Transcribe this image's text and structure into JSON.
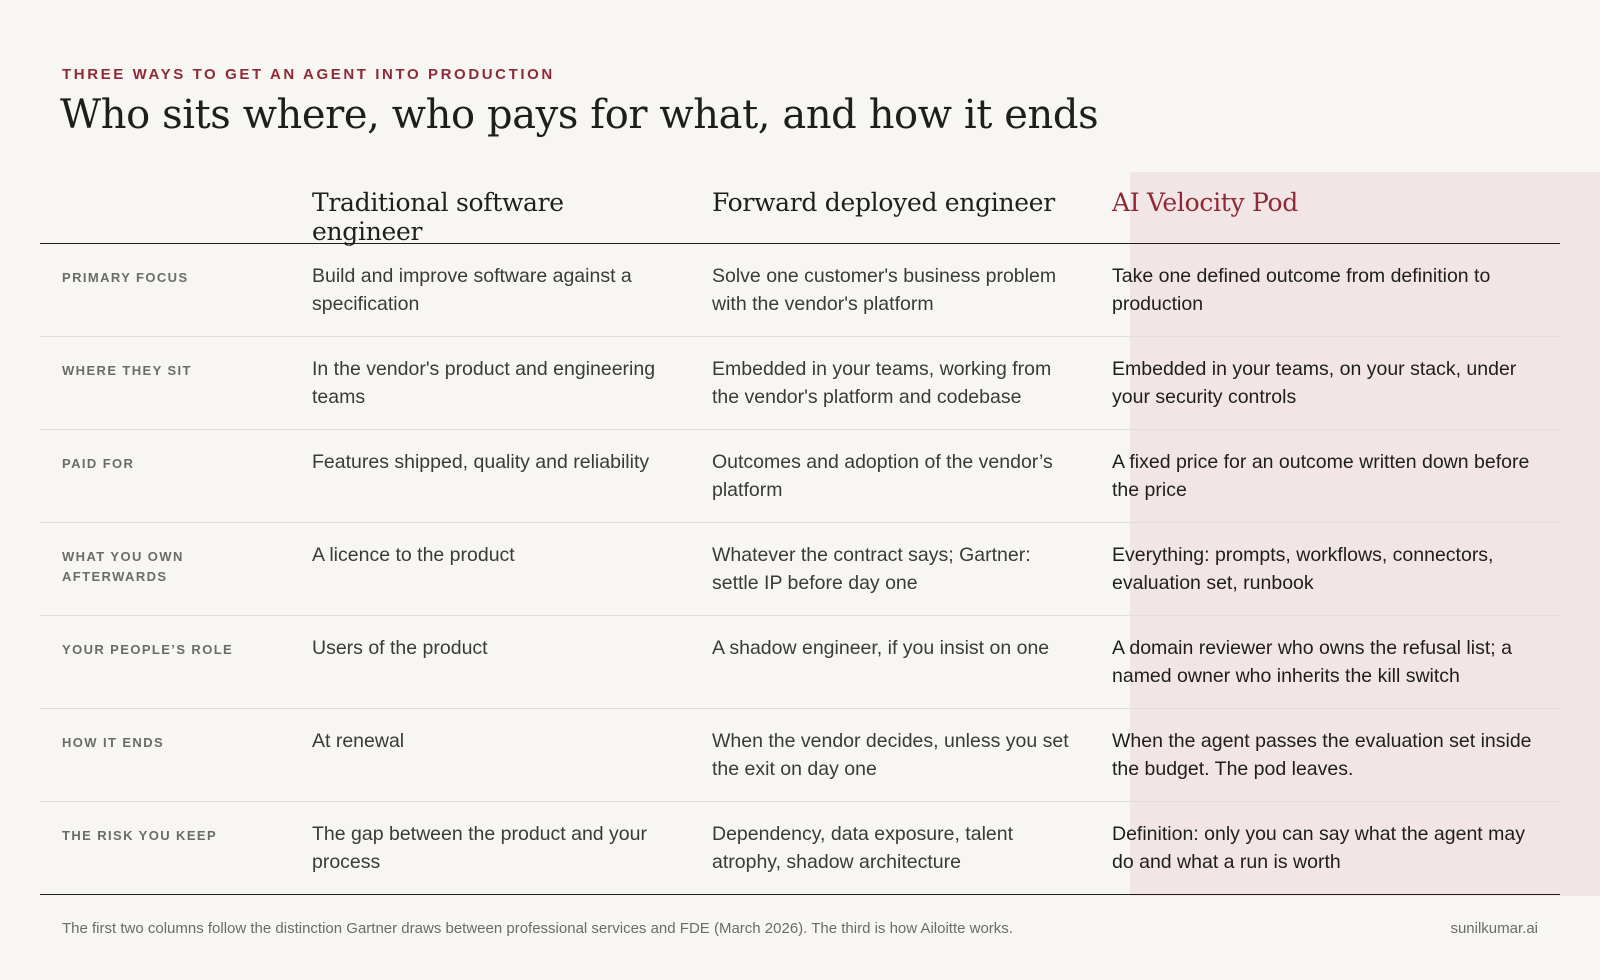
{
  "eyebrow": "THREE WAYS TO GET AN AGENT INTO PRODUCTION",
  "title": "Who sits where, who pays for what, and how it ends",
  "columns": [
    "Traditional software engineer",
    "Forward deployed engineer",
    "AI Velocity Pod"
  ],
  "accent_color": "#8e2a38",
  "highlight_color": "#f1e5e5",
  "rows": [
    {
      "label": "PRIMARY FOCUS",
      "cells": [
        "Build and improve software against a specification",
        "Solve one customer's business problem with the vendor's platform",
        "Take one defined outcome from definition to production"
      ]
    },
    {
      "label": "WHERE THEY SIT",
      "cells": [
        "In the vendor's product and engineering teams",
        "Embedded in your teams, working from the vendor's platform and codebase",
        "Embedded in your teams, on your stack, under your security controls"
      ]
    },
    {
      "label": "PAID FOR",
      "cells": [
        "Features shipped, quality and reliability",
        "Outcomes and adoption of the vendor’s platform",
        "A fixed price for an outcome written down before the price"
      ]
    },
    {
      "label": "WHAT YOU OWN AFTERWARDS",
      "cells": [
        "A licence to the product",
        "Whatever the contract says; Gartner: settle IP before day one",
        "Everything: prompts, workflows, connectors, evaluation set, runbook"
      ]
    },
    {
      "label": "YOUR PEOPLE’S ROLE",
      "cells": [
        "Users of the product",
        "A shadow engineer, if you insist on one",
        "A domain reviewer who owns the refusal list; a named owner who inherits the kill switch"
      ]
    },
    {
      "label": "HOW IT ENDS",
      "cells": [
        "At renewal",
        "When the vendor decides, unless you set the exit on day one",
        "When the agent passes the evaluation set inside the budget. The pod leaves."
      ]
    },
    {
      "label": "THE RISK YOU KEEP",
      "cells": [
        "The gap between the product and your process",
        "Dependency, data exposure, talent atrophy, shadow architecture",
        "Definition: only you can say what the agent may do and what a run is worth"
      ]
    }
  ],
  "footnote": "The first two columns follow the distinction Gartner draws between professional services and FDE (March 2026). The third is how Ailoitte works.",
  "site": "sunilkumar.ai"
}
